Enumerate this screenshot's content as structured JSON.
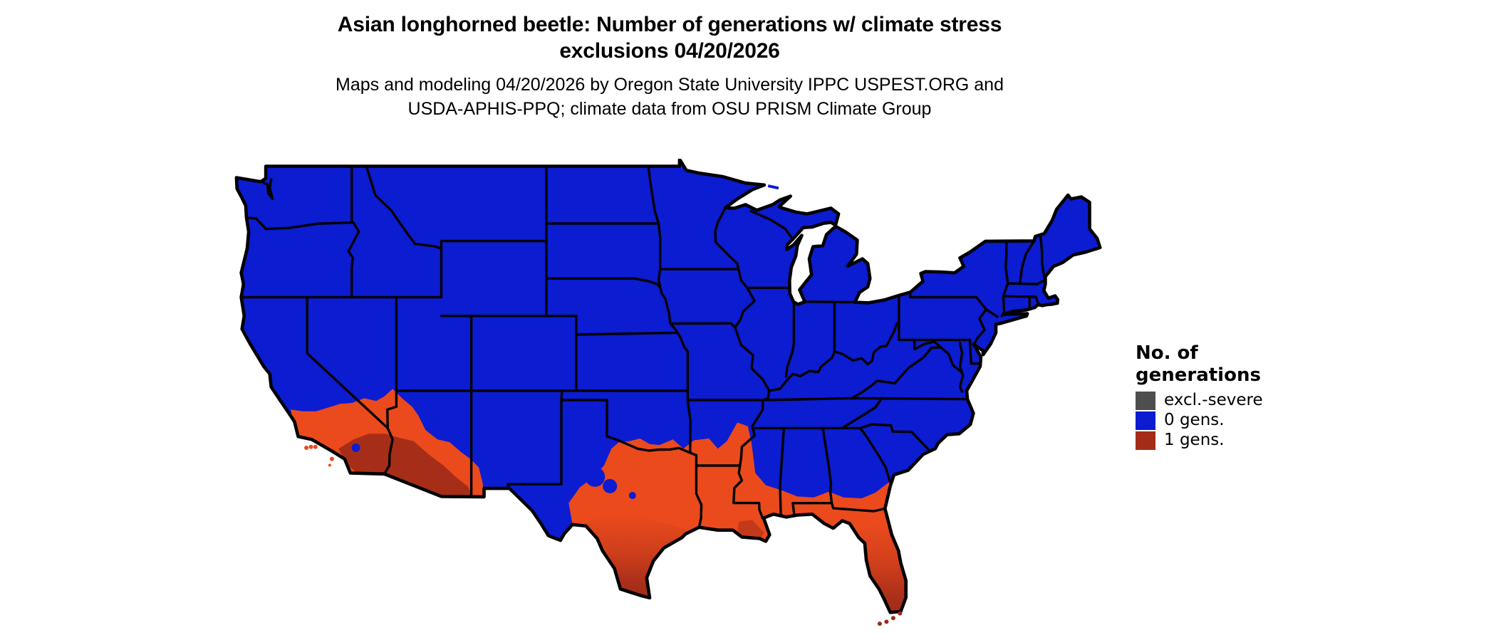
{
  "title": {
    "line1": "Asian longhorned beetle: Number of generations w/ climate stress",
    "line2": "exclusions 04/20/2026"
  },
  "subtitle": {
    "line1": "Maps and modeling 04/20/2026 by Oregon State University IPPC USPEST.ORG and",
    "line2": "USDA-APHIS-PPQ; climate data from OSU PRISM Climate Group"
  },
  "legend": {
    "title_line1": "No. of",
    "title_line2": "generations",
    "items": [
      {
        "label": "excl.-severe",
        "color": "#4E4E4E"
      },
      {
        "label": "0 gens.",
        "color": "#0C1CD1"
      },
      {
        "label": "1 gens.",
        "color": "#A52B19"
      }
    ]
  },
  "map": {
    "background": "#FFFFFF",
    "zero_gens_color": "#0C1CD1",
    "one_gen_color": "#EB4A1D",
    "one_gen_dark_color": "#9C2A18",
    "boundary_color": "#000000"
  }
}
